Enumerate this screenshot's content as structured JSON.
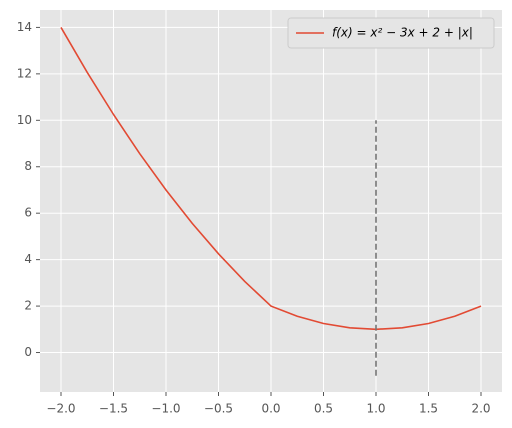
{
  "chart_data": {
    "type": "line",
    "x": [
      -2,
      -1.75,
      -1.5,
      -1.25,
      -1,
      -0.75,
      -0.5,
      -0.25,
      0,
      0.25,
      0.5,
      0.75,
      1,
      1.25,
      1.5,
      1.75,
      2
    ],
    "series": [
      {
        "name": "f(x) = x² − 3x + 2 + |x|",
        "color": "#e24a33",
        "values": [
          14,
          12.0625,
          10.25,
          8.5625,
          7,
          5.5625,
          4.25,
          3.0625,
          2,
          1.5625,
          1.25,
          1.0625,
          1,
          1.0625,
          1.25,
          1.5625,
          2
        ]
      }
    ],
    "vline": {
      "x": 1,
      "ymin": -1,
      "ymax": 10,
      "color": "#777777",
      "style": "dashed"
    },
    "xlim": [
      -2.2,
      2.2
    ],
    "ylim": [
      -1.7,
      14.75
    ],
    "xticks": [
      {
        "value": -2,
        "label": "−2.0"
      },
      {
        "value": -1.5,
        "label": "−1.5"
      },
      {
        "value": -1,
        "label": "−1.0"
      },
      {
        "value": -0.5,
        "label": "−0.5"
      },
      {
        "value": 0,
        "label": "0.0"
      },
      {
        "value": 0.5,
        "label": "0.5"
      },
      {
        "value": 1,
        "label": "1.0"
      },
      {
        "value": 1.5,
        "label": "1.5"
      },
      {
        "value": 2,
        "label": "2.0"
      }
    ],
    "yticks": [
      0,
      2,
      4,
      6,
      8,
      10,
      12,
      14
    ],
    "grid": true,
    "legend": "upper right"
  }
}
